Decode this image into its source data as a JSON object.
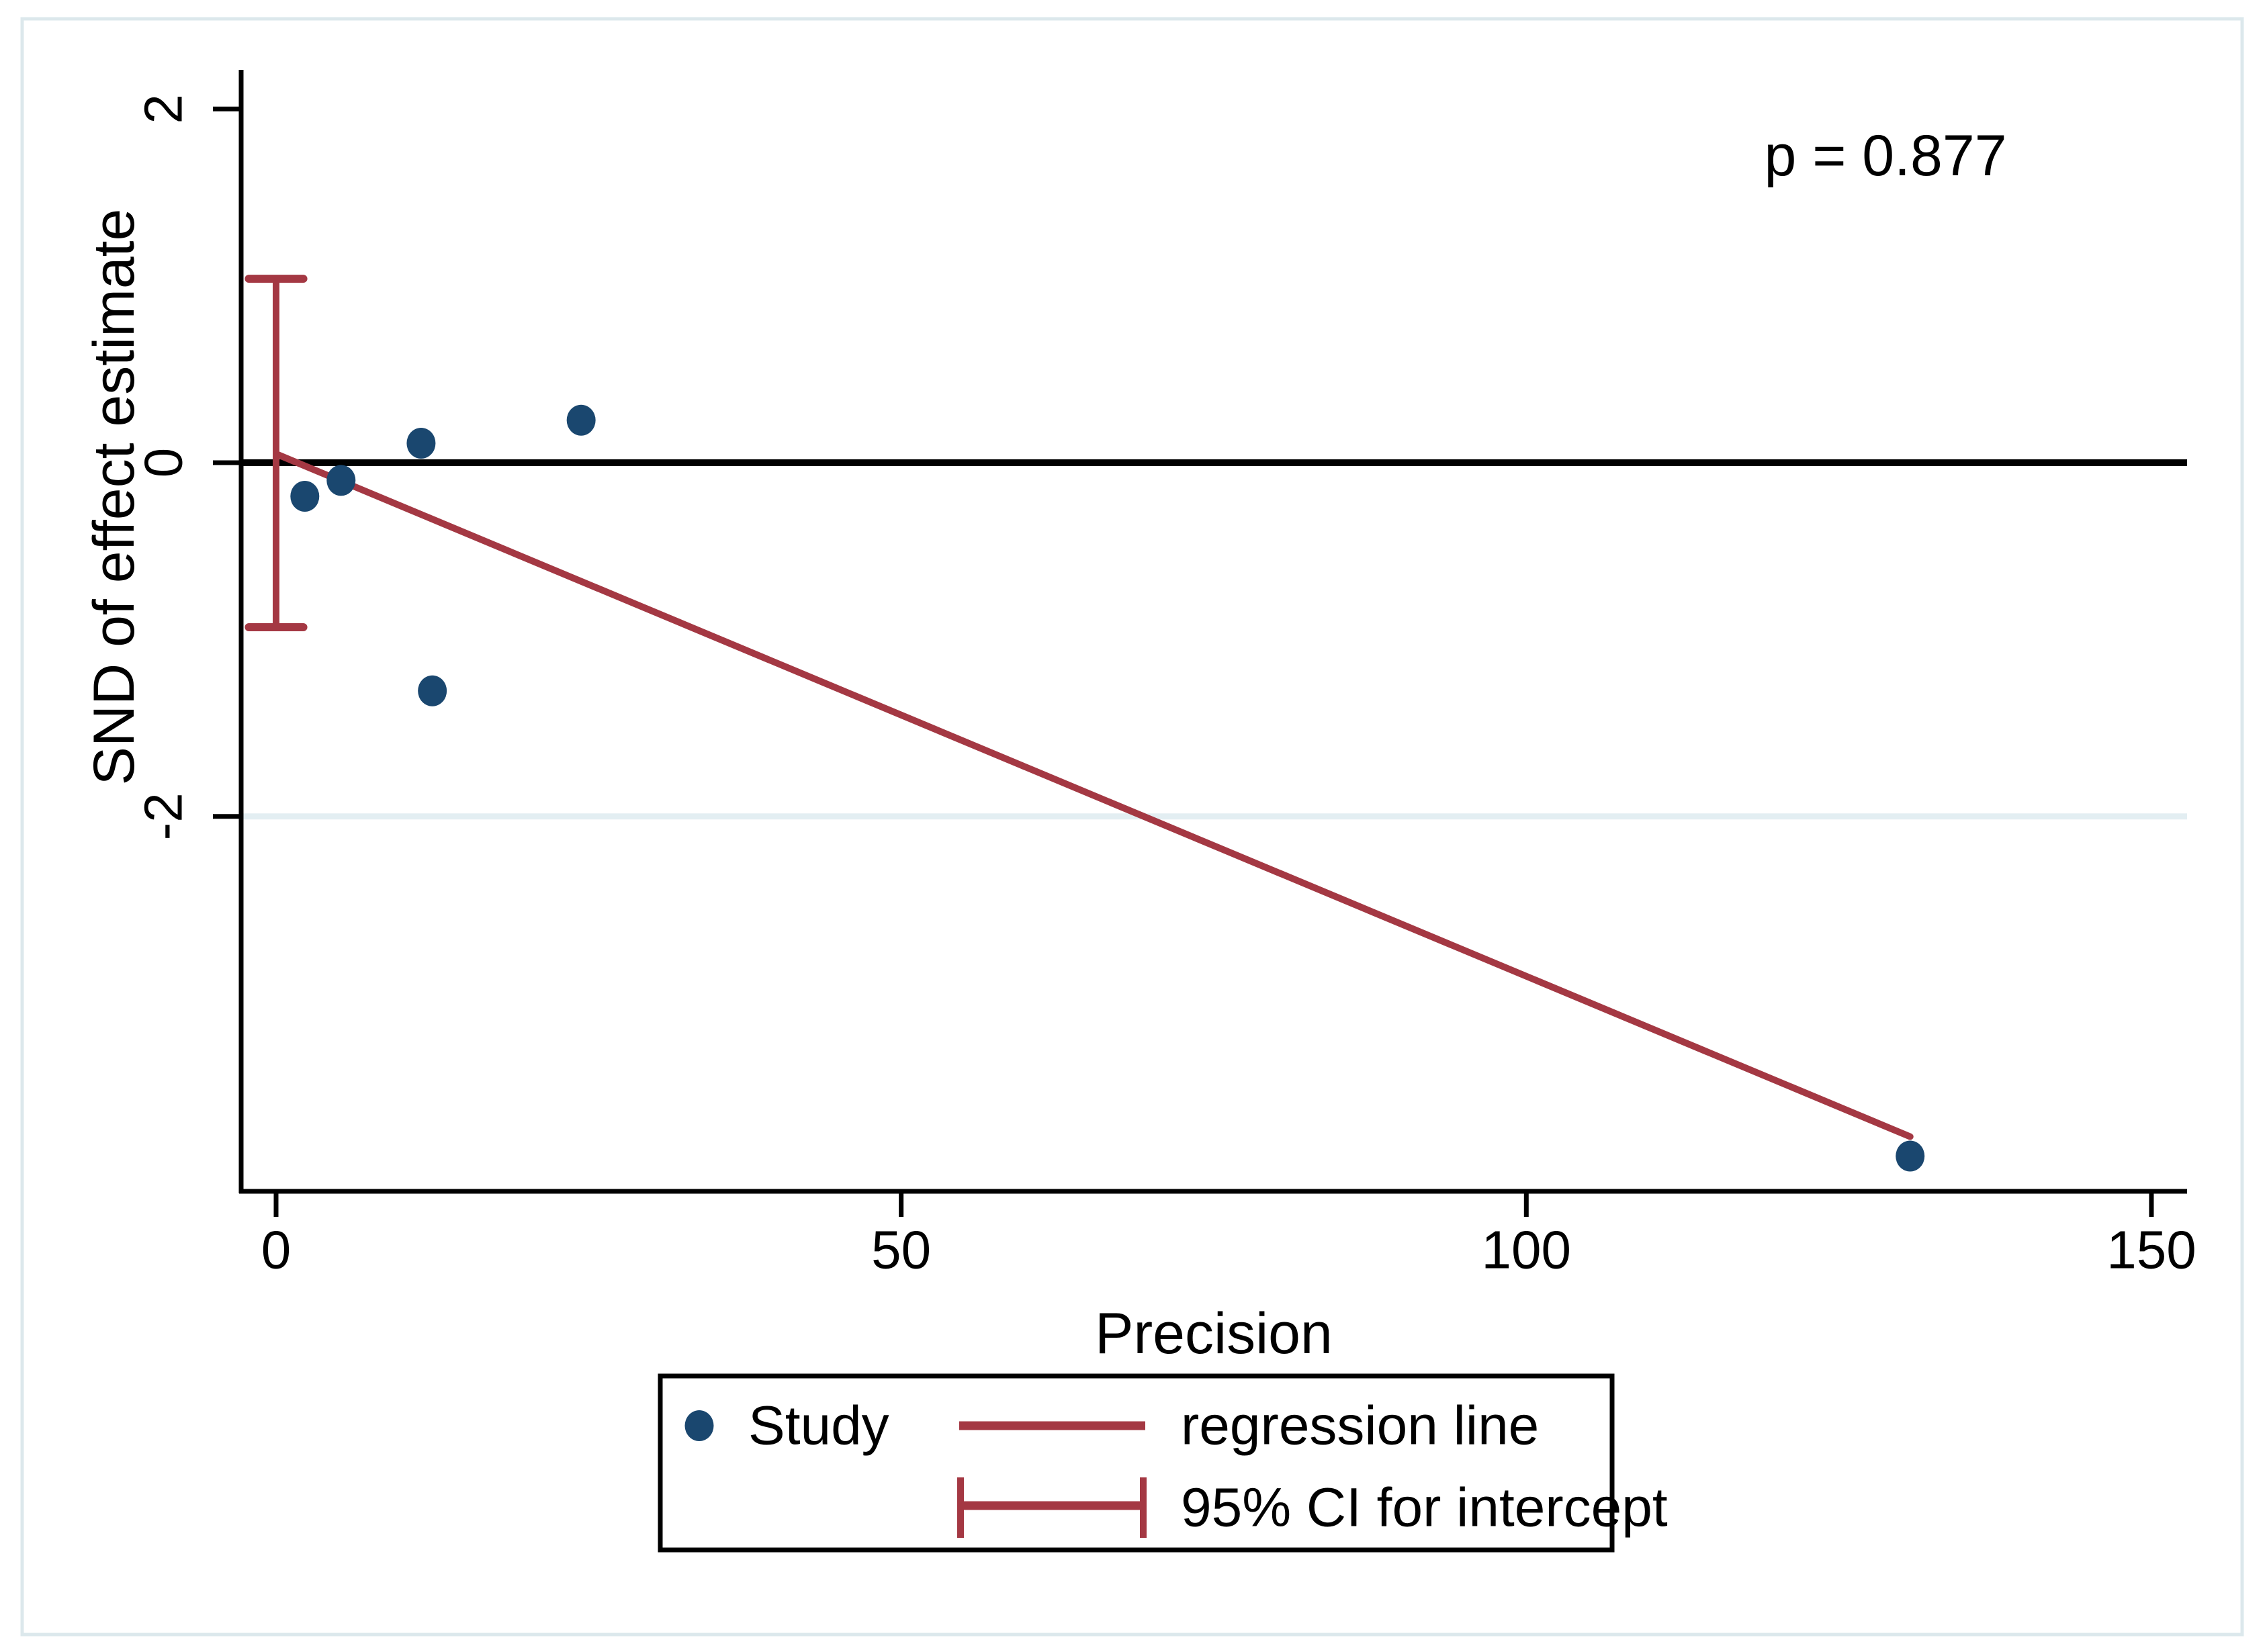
{
  "figure": {
    "background": "#ffffff",
    "frame_color": "#dce8ec"
  },
  "colors": {
    "point": "#1a476f",
    "regression": "#a43843",
    "ci": "#a43843",
    "zero_line": "#000000",
    "gridline": "#e3eef2",
    "axis": "#000000"
  },
  "chart_data": {
    "type": "scatter",
    "title": "",
    "xlabel": "Precision",
    "ylabel": "SND of effect estimate",
    "annotation": "p = 0.877",
    "xlim": [
      -2.8,
      152.9
    ],
    "ylim": [
      -4.12,
      2.22
    ],
    "grid": "single horizontal gridline at y = -2",
    "xticks": [
      {
        "v": 0,
        "label": "0"
      },
      {
        "v": 50,
        "label": "50"
      },
      {
        "v": 100,
        "label": "100"
      },
      {
        "v": 150,
        "label": "150"
      }
    ],
    "yticks": [
      {
        "v": 2,
        "label": "2"
      },
      {
        "v": 0,
        "label": "0"
      },
      {
        "v": -2,
        "label": "-2"
      }
    ],
    "ref_line_y": 0,
    "grid_line_y": -2,
    "points": [
      {
        "x": 2.3,
        "y": -0.19
      },
      {
        "x": 5.2,
        "y": -0.1
      },
      {
        "x": 11.6,
        "y": 0.11
      },
      {
        "x": 24.4,
        "y": 0.24
      },
      {
        "x": 12.5,
        "y": -1.29
      },
      {
        "x": 130.7,
        "y": -3.92
      }
    ],
    "regression_line": {
      "x1": 0,
      "y1": 0.05,
      "x2": 130.7,
      "y2": -3.81
    },
    "ci_intercept": {
      "x": 0,
      "lower": -0.93,
      "upper": 1.04,
      "cap_halfwidth_data": 2.18
    }
  },
  "legend": {
    "items": [
      {
        "glyph": "point",
        "label": "Study"
      },
      {
        "glyph": "line",
        "label": "regression line"
      },
      {
        "glyph": "error-bar",
        "label": "95% CI for intercept"
      }
    ]
  }
}
